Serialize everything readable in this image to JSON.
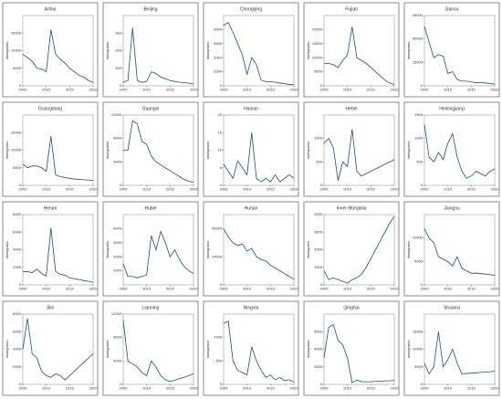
{
  "chart_data": [
    {
      "type": "line",
      "title": "Anhui",
      "ylabel": "Immigrants",
      "x": [
        2005,
        2006,
        2007,
        2008,
        2009,
        2010,
        2011,
        2012,
        2013,
        2014,
        2015,
        2016,
        2017,
        2018,
        2019,
        2020
      ],
      "values": [
        9000,
        8000,
        7000,
        5000,
        4800,
        4000,
        16000,
        9000,
        7500,
        6500,
        5000,
        4000,
        3000,
        2500,
        1500,
        1000
      ],
      "color": "#1f4e79",
      "xlim": [
        2005,
        2020
      ],
      "xticks": [
        2005,
        2010,
        2015,
        2020
      ],
      "ylim": [
        0,
        20000
      ],
      "yticks": [
        0,
        5000,
        10000,
        15000
      ]
    },
    {
      "type": "line",
      "title": "Beijing",
      "ylabel": "Immigrants",
      "x": [
        2005,
        2006,
        2007,
        2008,
        2009,
        2010,
        2011,
        2012,
        2013,
        2014,
        2015,
        2016,
        2017,
        2018,
        2019,
        2020
      ],
      "values": [
        20,
        30,
        330,
        30,
        20,
        25,
        80,
        70,
        50,
        40,
        30,
        25,
        20,
        18,
        15,
        10
      ],
      "color": "#1f4e79",
      "xlim": [
        2005,
        2020
      ],
      "xticks": [
        2005,
        2010,
        2015,
        2020
      ],
      "ylim": [
        0,
        400
      ],
      "yticks": [
        0,
        100,
        200,
        300
      ]
    },
    {
      "type": "line",
      "title": "Chongqing",
      "ylabel": "Immigrants",
      "x": [
        2005,
        2006,
        2007,
        2008,
        2009,
        2010,
        2011,
        2012,
        2013,
        2014,
        2015,
        2016,
        2017,
        2018,
        2019,
        2020
      ],
      "values": [
        4300,
        4500,
        3800,
        3000,
        2200,
        800,
        2000,
        1500,
        400,
        300,
        300,
        250,
        200,
        150,
        100,
        80
      ],
      "color": "#1f4e79",
      "xlim": [
        2005,
        2020
      ],
      "xticks": [
        2005,
        2010,
        2015,
        2020
      ],
      "ylim": [
        0,
        5000
      ],
      "yticks": [
        0,
        1000,
        2000,
        3000,
        4000
      ]
    },
    {
      "type": "line",
      "title": "Fujian",
      "ylabel": "Immigrants",
      "x": [
        2005,
        2006,
        2007,
        2008,
        2009,
        2010,
        2011,
        2012,
        2013,
        2014,
        2015,
        2016,
        2017,
        2018,
        2019,
        2020
      ],
      "values": [
        8000,
        8000,
        7500,
        6500,
        9000,
        11000,
        21000,
        10000,
        9000,
        8000,
        6500,
        5000,
        3500,
        2000,
        1000,
        500
      ],
      "color": "#1f4e79",
      "xlim": [
        2005,
        2020
      ],
      "xticks": [
        2005,
        2010,
        2015,
        2020
      ],
      "ylim": [
        0,
        25000
      ],
      "yticks": [
        0,
        5000,
        10000,
        15000,
        20000
      ]
    },
    {
      "type": "line",
      "title": "Gansu",
      "ylabel": "Immigrants",
      "x": [
        2005,
        2006,
        2007,
        2008,
        2009,
        2010,
        2011,
        2012,
        2013,
        2014,
        2015,
        2016,
        2017,
        2018,
        2019,
        2020
      ],
      "values": [
        38000,
        28000,
        18000,
        20000,
        19000,
        8000,
        9000,
        4000,
        3000,
        3000,
        2500,
        2000,
        2200,
        1800,
        1500,
        1000
      ],
      "color": "#1f4e79",
      "xlim": [
        2005,
        2020
      ],
      "xticks": [
        2005,
        2010,
        2015,
        2020
      ],
      "ylim": [
        0,
        45000
      ],
      "yticks": [
        0,
        15000,
        30000,
        45000
      ]
    },
    {
      "type": "line",
      "title": "Guangdong",
      "ylabel": "Immigrants",
      "x": [
        2005,
        2006,
        2007,
        2008,
        2009,
        2010,
        2011,
        2012,
        2013,
        2014,
        2015,
        2016,
        2017,
        2018,
        2019,
        2020
      ],
      "values": [
        6000,
        5000,
        5500,
        5500,
        5000,
        4000,
        14000,
        3000,
        2500,
        2200,
        2000,
        1800,
        1700,
        1600,
        1500,
        1400
      ],
      "color": "#1f4e79",
      "xlim": [
        2005,
        2020
      ],
      "xticks": [
        2005,
        2010,
        2015,
        2020
      ],
      "ylim": [
        0,
        20000
      ],
      "yticks": [
        0,
        5000,
        10000,
        15000
      ]
    },
    {
      "type": "line",
      "title": "Guangxi",
      "ylabel": "Immigrants",
      "x": [
        2005,
        2006,
        2007,
        2008,
        2009,
        2010,
        2011,
        2012,
        2013,
        2014,
        2015,
        2016,
        2017,
        2018,
        2019,
        2020
      ],
      "values": [
        6000,
        6000,
        11000,
        10500,
        7500,
        7000,
        5000,
        4000,
        3500,
        3000,
        2500,
        2000,
        1500,
        1000,
        700,
        500
      ],
      "color": "#1f4e79",
      "xlim": [
        2005,
        2020
      ],
      "xticks": [
        2005,
        2010,
        2015,
        2020
      ],
      "ylim": [
        0,
        12000
      ],
      "yticks": [
        0,
        4000,
        8000,
        12000
      ]
    },
    {
      "type": "line",
      "title": "Hainan",
      "ylabel": "Immigrants",
      "x": [
        2005,
        2006,
        2007,
        2008,
        2009,
        2010,
        2011,
        2012,
        2013,
        2014,
        2015,
        2016,
        2017,
        2018,
        2019,
        2020
      ],
      "values": [
        6,
        4,
        2,
        7,
        5,
        3,
        15,
        2,
        1,
        2,
        1,
        3,
        1,
        2,
        3,
        2
      ],
      "color": "#1f4e79",
      "xlim": [
        2005,
        2020
      ],
      "xticks": [
        2005,
        2010,
        2015,
        2020
      ],
      "ylim": [
        0,
        20
      ],
      "yticks": [
        0,
        5,
        10,
        15,
        20
      ]
    },
    {
      "type": "line",
      "title": "Hebei",
      "ylabel": "Immigrants",
      "x": [
        2005,
        2006,
        2007,
        2008,
        2009,
        2010,
        2011,
        2012,
        2013,
        2014,
        2015,
        2016,
        2017,
        2018,
        2019,
        2020
      ],
      "values": [
        900,
        1000,
        800,
        100,
        500,
        400,
        1200,
        300,
        200,
        250,
        300,
        350,
        400,
        450,
        500,
        550
      ],
      "color": "#1f4e79",
      "xlim": [
        2005,
        2020
      ],
      "xticks": [
        2005,
        2010,
        2015,
        2020
      ],
      "ylim": [
        0,
        1500
      ],
      "yticks": [
        0,
        500,
        1000
      ]
    },
    {
      "type": "line",
      "title": "Heilongjiang",
      "ylabel": "Immigrants",
      "x": [
        2005,
        2006,
        2007,
        2008,
        2009,
        2010,
        2011,
        2012,
        2013,
        2014,
        2015,
        2016,
        2017,
        2018,
        2019,
        2020
      ],
      "values": [
        1300,
        600,
        500,
        700,
        550,
        900,
        1100,
        600,
        300,
        150,
        200,
        300,
        250,
        200,
        300,
        350
      ],
      "color": "#1f4e79",
      "xlim": [
        2005,
        2020
      ],
      "xticks": [
        2005,
        2010,
        2015,
        2020
      ],
      "ylim": [
        0,
        1500
      ],
      "yticks": [
        0,
        500,
        1000,
        1500
      ]
    },
    {
      "type": "line",
      "title": "Henan",
      "ylabel": "Immigrants",
      "x": [
        2005,
        2006,
        2007,
        2008,
        2009,
        2010,
        2011,
        2012,
        2013,
        2014,
        2015,
        2016,
        2017,
        2018,
        2019,
        2020
      ],
      "values": [
        1500,
        1500,
        1400,
        1800,
        1300,
        1000,
        6500,
        1500,
        1200,
        1100,
        800,
        700,
        600,
        500,
        400,
        300
      ],
      "color": "#1f4e79",
      "xlim": [
        2005,
        2020
      ],
      "xticks": [
        2005,
        2010,
        2015,
        2020
      ],
      "ylim": [
        0,
        8000
      ],
      "yticks": [
        0,
        2000,
        4000,
        6000,
        8000
      ]
    },
    {
      "type": "line",
      "title": "Hubei",
      "ylabel": "Immigrants",
      "x": [
        2005,
        2006,
        2007,
        2008,
        2009,
        2010,
        2011,
        2012,
        2013,
        2014,
        2015,
        2016,
        2017,
        2018,
        2019,
        2020
      ],
      "values": [
        1500,
        600,
        600,
        500,
        600,
        700,
        3500,
        2500,
        3800,
        3000,
        2000,
        2500,
        1800,
        1300,
        1000,
        800
      ],
      "color": "#1f4e79",
      "xlim": [
        2005,
        2020
      ],
      "xticks": [
        2005,
        2010,
        2015,
        2020
      ],
      "ylim": [
        0,
        5000
      ],
      "yticks": [
        1000,
        2000,
        3000,
        4000
      ]
    },
    {
      "type": "line",
      "title": "Hunan",
      "ylabel": "Immigrants",
      "x": [
        2005,
        2006,
        2007,
        2008,
        2009,
        2010,
        2011,
        2012,
        2013,
        2014,
        2015,
        2016,
        2017,
        2018,
        2019,
        2020
      ],
      "values": [
        20000,
        17000,
        15000,
        14000,
        14500,
        12000,
        13000,
        10000,
        9000,
        8500,
        7000,
        6000,
        5000,
        4000,
        3000,
        2000
      ],
      "color": "#1f4e79",
      "xlim": [
        2005,
        2020
      ],
      "xticks": [
        2005,
        2010,
        2015,
        2020
      ],
      "ylim": [
        0,
        25000
      ],
      "yticks": [
        0,
        10000,
        20000
      ]
    },
    {
      "type": "line",
      "title": "Inner Mongolia",
      "ylabel": "Immigrants",
      "x": [
        2005,
        2006,
        2007,
        2008,
        2009,
        2010,
        2011,
        2012,
        2013,
        2014,
        2015,
        2016,
        2017,
        2018,
        2019,
        2020
      ],
      "values": [
        800,
        300,
        400,
        300,
        200,
        100,
        300,
        400,
        600,
        1000,
        1500,
        2000,
        2500,
        3000,
        3500,
        3900
      ],
      "color": "#1f4e79",
      "xlim": [
        2005,
        2020
      ],
      "xticks": [
        2005,
        2010,
        2015,
        2020
      ],
      "ylim": [
        0,
        4000
      ],
      "yticks": [
        0,
        1000,
        2000,
        3000,
        4000
      ]
    },
    {
      "type": "line",
      "title": "Jiangsu",
      "ylabel": "Immigrants",
      "x": [
        2005,
        2006,
        2007,
        2008,
        2009,
        2010,
        2011,
        2012,
        2013,
        2014,
        2015,
        2016,
        2017,
        2018,
        2019,
        2020
      ],
      "values": [
        12000,
        10000,
        9000,
        6000,
        5500,
        5000,
        4000,
        6000,
        3500,
        3000,
        2500,
        2500,
        2400,
        2300,
        2200,
        2000
      ],
      "color": "#1f4e79",
      "xlim": [
        2005,
        2020
      ],
      "xticks": [
        2005,
        2010,
        2015,
        2020
      ],
      "ylim": [
        0,
        15000
      ],
      "yticks": [
        0,
        5000,
        10000
      ]
    },
    {
      "type": "line",
      "title": "Jilin",
      "ylabel": "Immigrants",
      "x": [
        2005,
        2006,
        2007,
        2008,
        2009,
        2010,
        2011,
        2012,
        2013,
        2014,
        2015,
        2016,
        2017,
        2018,
        2019,
        2020
      ],
      "values": [
        4000,
        7500,
        3500,
        3000,
        1500,
        1000,
        800,
        1200,
        1000,
        500,
        1000,
        1500,
        2000,
        2500,
        3000,
        3500
      ],
      "color": "#1f4e79",
      "xlim": [
        2005,
        2020
      ],
      "xticks": [
        2005,
        2010,
        2015,
        2020
      ],
      "ylim": [
        0,
        8000
      ],
      "yticks": [
        0,
        2000,
        4000,
        6000,
        8000
      ]
    },
    {
      "type": "line",
      "title": "Liaoning",
      "ylabel": "Immigrants",
      "x": [
        2005,
        2006,
        2007,
        2008,
        2009,
        2010,
        2011,
        2012,
        2013,
        2014,
        2015,
        2016,
        2017,
        2018,
        2019,
        2020
      ],
      "values": [
        11000,
        4000,
        3500,
        3000,
        2000,
        1500,
        4000,
        3000,
        1500,
        800,
        500,
        700,
        1000,
        1200,
        1500,
        1800
      ],
      "color": "#1f4e79",
      "xlim": [
        2005,
        2020
      ],
      "xticks": [
        2005,
        2010,
        2015,
        2020
      ],
      "ylim": [
        0,
        12000
      ],
      "yticks": [
        0,
        4000,
        8000,
        12000
      ]
    },
    {
      "type": "line",
      "title": "Ningxia",
      "ylabel": "Immigrants",
      "x": [
        2005,
        2006,
        2007,
        2008,
        2009,
        2010,
        2011,
        2012,
        2013,
        2014,
        2015,
        2016,
        2017,
        2018,
        2019,
        2020
      ],
      "values": [
        1300,
        1350,
        500,
        300,
        250,
        200,
        800,
        500,
        300,
        150,
        200,
        100,
        150,
        80,
        100,
        50
      ],
      "color": "#1f4e79",
      "xlim": [
        2005,
        2020
      ],
      "xticks": [
        2005,
        2010,
        2015,
        2020
      ],
      "ylim": [
        0,
        1500
      ],
      "yticks": [
        0,
        500,
        1000
      ]
    },
    {
      "type": "line",
      "title": "Qinghai",
      "ylabel": "Immigrants",
      "x": [
        2005,
        2006,
        2007,
        2008,
        2009,
        2010,
        2011,
        2012,
        2013,
        2014,
        2015,
        2016,
        2017,
        2018,
        2019,
        2020
      ],
      "values": [
        3000,
        6500,
        6800,
        5000,
        4500,
        3000,
        200,
        500,
        300,
        300,
        300,
        350,
        350,
        400,
        400,
        450
      ],
      "color": "#1f4e79",
      "xlim": [
        2005,
        2020
      ],
      "xticks": [
        2005,
        2010,
        2015,
        2020
      ],
      "ylim": [
        0,
        8000
      ],
      "yticks": [
        0,
        2000,
        4000,
        6000
      ]
    },
    {
      "type": "line",
      "title": "Shaanxi",
      "ylabel": "Immigrants",
      "x": [
        2005,
        2006,
        2007,
        2008,
        2009,
        2010,
        2011,
        2012,
        2013,
        2014,
        2015,
        2016,
        2017,
        2018,
        2019,
        2020
      ],
      "values": [
        6000,
        3000,
        5000,
        15000,
        5000,
        7000,
        10000,
        6000,
        3000,
        3100,
        3200,
        3300,
        3400,
        3500,
        3600,
        3800
      ],
      "color": "#1f4e79",
      "xlim": [
        2005,
        2020
      ],
      "xticks": [
        2005,
        2010,
        2015,
        2020
      ],
      "ylim": [
        0,
        20000
      ],
      "yticks": [
        0,
        5000,
        10000,
        15000
      ]
    }
  ]
}
